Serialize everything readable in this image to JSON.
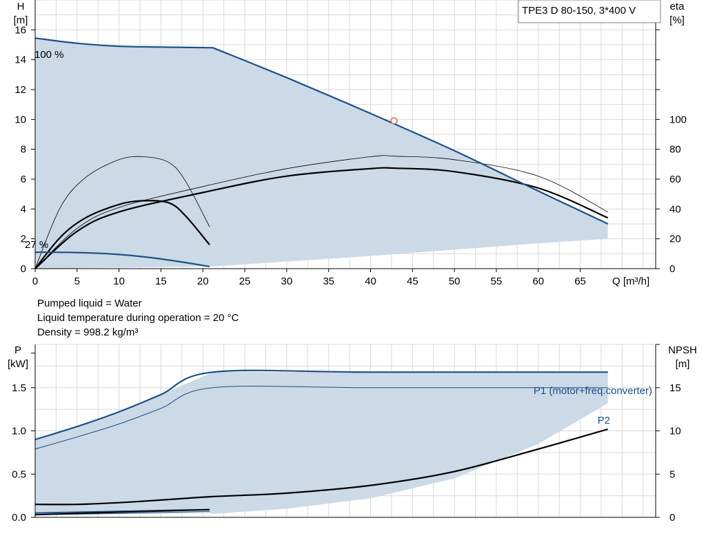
{
  "pump_title": "TPE3 D 80-150, 3*400 V",
  "notes": {
    "liquid": "Pumped liquid = Water",
    "temperature": "Liquid temperature during operation = 20 °C",
    "density": "Density = 998.2 kg/m³"
  },
  "colors": {
    "curve_blue": "#1b4f8a",
    "area_fill": "#ccd9e6",
    "grid": "#d9d9d9",
    "efficiency": "#000000"
  },
  "chart_data": [
    {
      "type": "line",
      "xlabel": "Q [m³/h]",
      "ylabel_left": [
        "H",
        "[m]"
      ],
      "ylabel_right": [
        "eta",
        "[%]"
      ],
      "x_ticks": [
        0,
        5,
        10,
        15,
        20,
        25,
        30,
        35,
        40,
        45,
        50,
        55,
        60,
        65
      ],
      "y_ticks_left": [
        0,
        2,
        4,
        6,
        8,
        10,
        12,
        14,
        16
      ],
      "y_ticks_right": [
        0,
        20,
        40,
        60,
        80,
        100
      ],
      "xlim": [
        0,
        74
      ],
      "ylim_left": [
        0,
        18
      ],
      "ylim_right": [
        0,
        180
      ],
      "grid": true,
      "annotations": [
        "100 %",
        "27 %"
      ],
      "operating_point": {
        "x": 42.8,
        "y": 9.9
      },
      "series": [
        {
          "name": "100 %",
          "role": "max_head",
          "x": [
            0,
            5,
            10,
            15,
            21.2,
            30,
            40,
            50,
            60,
            68.3
          ],
          "y": [
            15.45,
            15.1,
            14.9,
            14.85,
            14.8,
            12.8,
            10.4,
            7.9,
            5.2,
            3.0
          ]
        },
        {
          "name": "27 %",
          "role": "min_head",
          "x": [
            0,
            5,
            10,
            15,
            20.8
          ],
          "y": [
            1.1,
            1.08,
            0.95,
            0.65,
            0.15
          ]
        },
        {
          "role": "min_boundary",
          "x": [
            21.2,
            40,
            60,
            68.3
          ],
          "y": [
            0.15,
            0.85,
            1.7,
            2.0
          ]
        },
        {
          "role": "efficiency_100",
          "x": [
            0,
            5,
            10,
            20,
            30,
            40,
            43,
            50,
            60,
            68.3
          ],
          "y": [
            0,
            25,
            38,
            51,
            62,
            67,
            67.3,
            65,
            54,
            34
          ]
        },
        {
          "role": "efficiency_100_p2",
          "x": [
            0,
            5,
            10,
            20,
            30,
            40,
            43,
            50,
            60,
            68.3
          ],
          "y": [
            0,
            27,
            41,
            55,
            67,
            75,
            75.3,
            73,
            62,
            38
          ]
        },
        {
          "role": "efficiency_27",
          "x": [
            0,
            3,
            6,
            10,
            13,
            16,
            18,
            20.8
          ],
          "y": [
            0,
            21,
            34,
            43,
            45.5,
            44,
            35,
            16
          ]
        },
        {
          "role": "efficiency_27_p2",
          "x": [
            0,
            3,
            6,
            10,
            13,
            16,
            18,
            20.8
          ],
          "y": [
            0,
            41,
            61,
            73,
            75,
            71,
            58,
            28
          ]
        }
      ]
    },
    {
      "type": "line",
      "xlabel": "",
      "ylabel_left": [
        "P",
        "[kW]"
      ],
      "ylabel_right": [
        "NPSH",
        "[m]"
      ],
      "y_ticks_left": [
        0.0,
        0.5,
        1.0,
        1.5
      ],
      "y_tick_labels_left": [
        "0.0",
        "0.5",
        "1.0",
        "1.5"
      ],
      "y_ticks_right": [
        0,
        5,
        10,
        15
      ],
      "xlim": [
        0,
        74
      ],
      "ylim_left": [
        0,
        2.0
      ],
      "ylim_right": [
        0,
        20
      ],
      "grid": true,
      "series": [
        {
          "name": "P1 (motor+freq.converter)",
          "role": "p1_max",
          "x": [
            0,
            5,
            10,
            15,
            21.2,
            40,
            68.3
          ],
          "y": [
            0.9,
            1.05,
            1.22,
            1.42,
            1.68,
            1.68,
            1.68
          ]
        },
        {
          "name": "P2",
          "role": "p2_max",
          "x": [
            0,
            5,
            10,
            15,
            21.2,
            40,
            68.3
          ],
          "y": [
            0.79,
            0.93,
            1.08,
            1.26,
            1.5,
            1.5,
            1.5
          ]
        },
        {
          "role": "power_area_lower",
          "x": [
            21.2,
            30,
            40,
            50,
            60,
            68.3
          ],
          "y": [
            0.04,
            0.1,
            0.22,
            0.45,
            0.85,
            1.32
          ]
        },
        {
          "role": "p1_min",
          "x": [
            0,
            10,
            20.8
          ],
          "y": [
            0.05,
            0.07,
            0.09
          ]
        },
        {
          "role": "p2_min",
          "x": [
            0,
            10,
            20.8
          ],
          "y": [
            0.03,
            0.045,
            0.07
          ]
        },
        {
          "role": "npsh",
          "x": [
            0,
            5,
            10,
            15,
            21.2,
            30,
            40,
            50,
            60,
            68.3
          ],
          "y": [
            1.5,
            1.5,
            1.7,
            2.0,
            2.4,
            2.8,
            3.7,
            5.3,
            7.9,
            10.2
          ]
        },
        {
          "role": "npsh_min",
          "x": [
            0,
            10,
            20.8
          ],
          "y": [
            0.3,
            0.6,
            0.9
          ]
        }
      ]
    }
  ]
}
